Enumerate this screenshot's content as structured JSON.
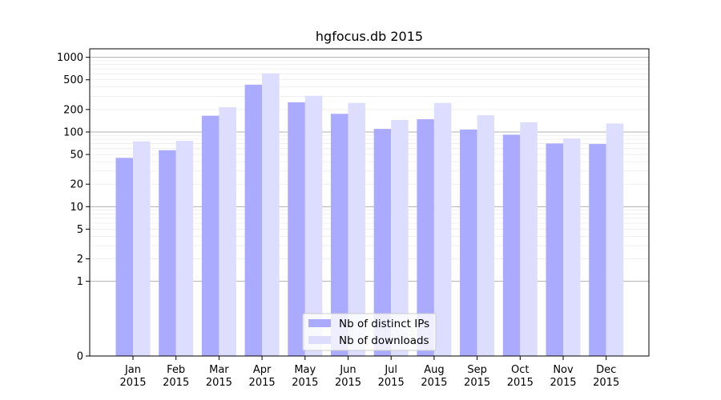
{
  "chart_data": {
    "type": "bar",
    "title": "hgfocus.db 2015",
    "xlabel": "",
    "ylabel": "",
    "y_scale": "symlog",
    "ylim": [
      0,
      1300
    ],
    "y_ticks": [
      0,
      1,
      2,
      5,
      10,
      20,
      50,
      100,
      200,
      500,
      1000
    ],
    "y_tick_labels": [
      "0",
      "1",
      "2",
      "5",
      "10",
      "20",
      "50",
      "100",
      "200",
      "500",
      "1000"
    ],
    "grid": true,
    "legend_position": "bottom-center",
    "categories": [
      [
        "Jan",
        "2015"
      ],
      [
        "Feb",
        "2015"
      ],
      [
        "Mar",
        "2015"
      ],
      [
        "Apr",
        "2015"
      ],
      [
        "May",
        "2015"
      ],
      [
        "Jun",
        "2015"
      ],
      [
        "Jul",
        "2015"
      ],
      [
        "Aug",
        "2015"
      ],
      [
        "Sep",
        "2015"
      ],
      [
        "Oct",
        "2015"
      ],
      [
        "Nov",
        "2015"
      ],
      [
        "Dec",
        "2015"
      ]
    ],
    "series": [
      {
        "name": "Nb of distinct IPs",
        "color": "#aaaaff",
        "values": [
          45,
          57,
          165,
          430,
          250,
          175,
          110,
          148,
          108,
          92,
          70,
          69
        ]
      },
      {
        "name": "Nb of downloads",
        "color": "#ddddff",
        "values": [
          75,
          76,
          215,
          610,
          305,
          245,
          145,
          245,
          168,
          135,
          82,
          130
        ]
      }
    ]
  }
}
